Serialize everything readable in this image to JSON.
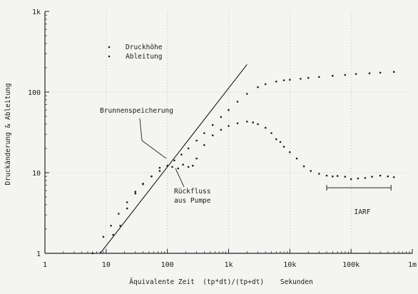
{
  "chart_data": {
    "type": "scatter",
    "scale": {
      "x": "log",
      "y": "log"
    },
    "xlim": [
      1,
      1000000
    ],
    "ylim": [
      1,
      1000
    ],
    "grid": true,
    "xlabel": "Äquivalente Zeit  (tp*dt)/(tp+dt)    Sekunden",
    "ylabel": "Druckänderung & Ableitung",
    "x_ticks": [
      {
        "value": 1,
        "label": "1"
      },
      {
        "value": 10,
        "label": "10"
      },
      {
        "value": 100,
        "label": "100"
      },
      {
        "value": 1000,
        "label": "1k"
      },
      {
        "value": 10000,
        "label": "10k"
      },
      {
        "value": 100000,
        "label": "100k"
      },
      {
        "value": 1000000,
        "label": "1m"
      }
    ],
    "y_ticks": [
      {
        "value": 1,
        "label": "1"
      },
      {
        "value": 10,
        "label": "10"
      },
      {
        "value": 100,
        "label": "100"
      },
      {
        "value": 1000,
        "label": "1k"
      }
    ],
    "legend": {
      "placement": "top-center",
      "entries": [
        "Druckhöhe",
        "Ableitung"
      ]
    },
    "series": [
      {
        "name": "Druckhöhe",
        "x": [
          4,
          6,
          9,
          12,
          16,
          22,
          30,
          40,
          55,
          75,
          100,
          130,
          170,
          220,
          300,
          400,
          550,
          750,
          1000,
          1400,
          2000,
          3000,
          4000,
          6000,
          8000,
          10000,
          15000,
          20000,
          30000,
          50000,
          80000,
          120000,
          200000,
          300000,
          500000
        ],
        "y": [
          0.7,
          1.0,
          1.6,
          2.2,
          3.1,
          4.3,
          5.8,
          7.3,
          9.0,
          10.5,
          12.2,
          14.2,
          16.8,
          20,
          25,
          31,
          39,
          49,
          60,
          76,
          95,
          115,
          125,
          135,
          140,
          142,
          146,
          150,
          154,
          159,
          163,
          167,
          171,
          174,
          178
        ]
      },
      {
        "name": "Ableitung",
        "x": [
          13,
          17,
          22,
          30,
          40,
          55,
          75,
          100,
          120,
          150,
          180,
          220,
          260,
          300,
          400,
          550,
          750,
          1000,
          1400,
          2000,
          2500,
          3000,
          4000,
          5000,
          6000,
          7000,
          8000,
          10000,
          13000,
          17000,
          22000,
          30000,
          40000,
          50000,
          60000,
          80000,
          100000,
          130000,
          170000,
          220000,
          300000,
          400000,
          500000
        ],
        "y": [
          1.7,
          2.2,
          3.6,
          5.5,
          7.2,
          9.0,
          11.5,
          12.2,
          11.8,
          11.3,
          12.6,
          11.8,
          12.2,
          15,
          22,
          29,
          34,
          38,
          41,
          43,
          42,
          40,
          36,
          31,
          26,
          24,
          21,
          18,
          15,
          12,
          10.5,
          9.7,
          9.2,
          9.0,
          9.1,
          8.9,
          8.3,
          8.5,
          8.6,
          8.9,
          9.2,
          9.0,
          8.8
        ]
      }
    ],
    "reference_lines": [
      {
        "type": "unit-slope",
        "x": [
          8,
          2000
        ],
        "y": [
          1,
          220
        ]
      }
    ],
    "annotations": [
      {
        "text": "Brunnenspeicherung"
      },
      {
        "text": "Rückfluss"
      },
      {
        "text": "aus Pumpe"
      },
      {
        "text": "IARF",
        "x_range": [
          40000,
          450000
        ],
        "y": 6.5
      }
    ]
  }
}
